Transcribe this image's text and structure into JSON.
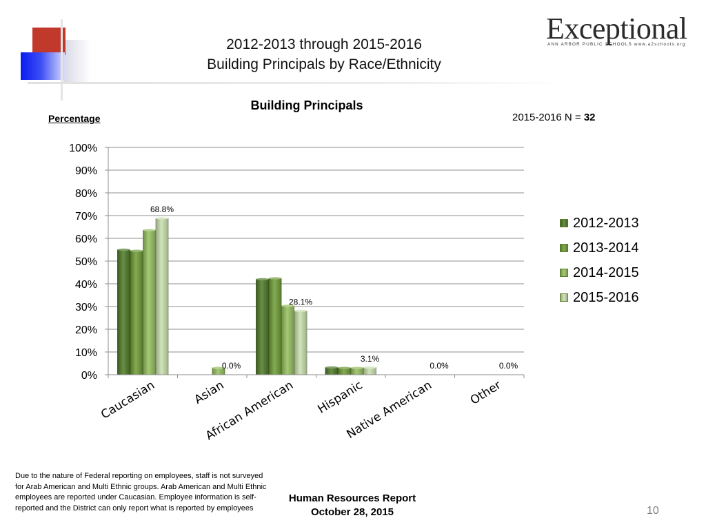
{
  "slide": {
    "title_line1": "2012-2013 through 2015-2016",
    "title_line2": "Building Principals by Race/Ethnicity",
    "logo_word": "Exceptional",
    "logo_sub": "ANN ARBOR PUBLIC SCHOOLS www.a2schools.org",
    "n_label": "2015-2016  N = ",
    "n_value": "32",
    "footnote": "Due to the nature of Federal reporting on employees, staff is not surveyed for Arab American and Multi Ethnic groups.  Arab American and Multi Ethnic employees are reported under Caucasian.  Employee information is self-reported and the District can only report what is reported by employees",
    "report_line1": "Human Resources  Report",
    "report_line2": "October 28, 2015",
    "page_number": "10"
  },
  "chart_data": {
    "type": "bar",
    "title": "Building Principals",
    "ylabel": "Percentage",
    "xlabel": "",
    "ylim": [
      0,
      100
    ],
    "yticks": [
      "0%",
      "10%",
      "20%",
      "30%",
      "40%",
      "50%",
      "60%",
      "70%",
      "80%",
      "90%",
      "100%"
    ],
    "grid": true,
    "legend_position": "right",
    "categories": [
      "Caucasian",
      "Asian",
      "African American",
      "Hispanic",
      "Native American",
      "Other"
    ],
    "series": [
      {
        "name": "2012-2013",
        "color": "#4f7a28",
        "values": [
          55,
          0,
          42,
          3.2,
          0,
          0
        ]
      },
      {
        "name": "2013-2014",
        "color": "#6e9c36",
        "values": [
          54.5,
          0,
          42.4,
          3,
          0,
          0
        ]
      },
      {
        "name": "2014-2015",
        "color": "#95bf5f",
        "values": [
          63.6,
          3,
          30.3,
          3,
          0,
          0
        ]
      },
      {
        "name": "2015-2016",
        "color": "#c9dfae",
        "values": [
          68.8,
          0,
          28.1,
          3.1,
          0,
          0
        ]
      }
    ],
    "data_labels": [
      {
        "category": "Caucasian",
        "text": "68.8%"
      },
      {
        "category": "Asian",
        "text": "0.0%"
      },
      {
        "category": "African American",
        "text": "28.1%"
      },
      {
        "category": "Hispanic",
        "text": "3.1%"
      },
      {
        "category": "Native American",
        "text": "0.0%"
      },
      {
        "category": "Other",
        "text": "0.0%"
      }
    ]
  }
}
